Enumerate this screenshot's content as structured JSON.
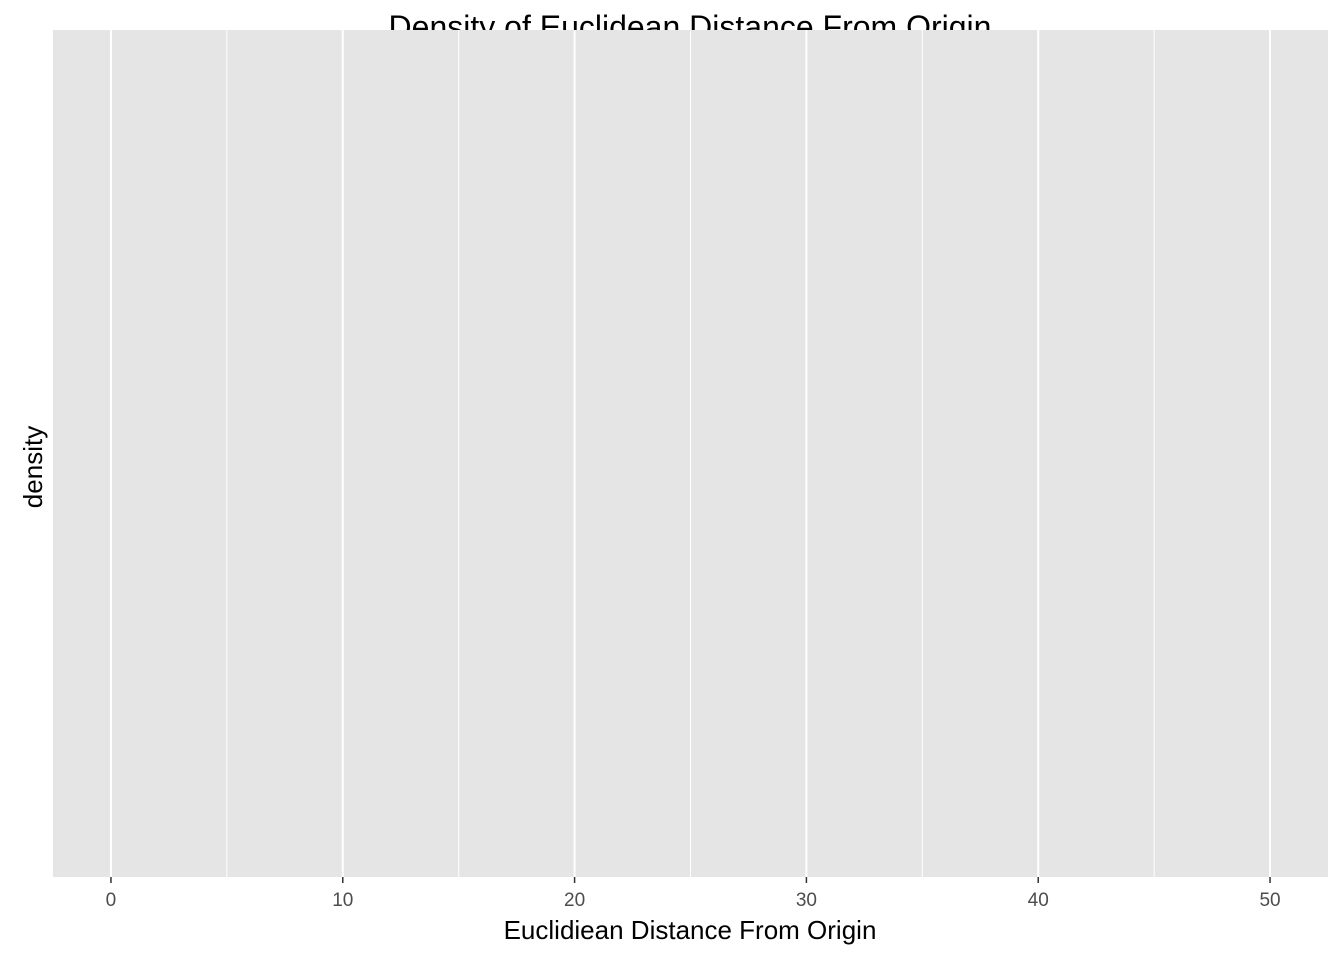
{
  "chart_data": {
    "type": "area",
    "title": "Density of Euclidean Distance From Origin",
    "xlabel": "Euclidiean Distance From Origin",
    "ylabel": "density",
    "xlim": [
      -2.5,
      52.5
    ],
    "x_major_ticks": [
      0,
      10,
      20,
      30,
      40,
      50
    ],
    "x_tick_labels": [
      "0",
      "10",
      "20",
      "30",
      "40",
      "50"
    ],
    "x_minor_gridlines": [
      5,
      15,
      25,
      35,
      45
    ],
    "y_ticks": [],
    "series": [],
    "grid": true,
    "panel_background": "#e5e5e5",
    "gridline_color": "#ffffff",
    "tick_label_color": "#4d4d4d"
  }
}
